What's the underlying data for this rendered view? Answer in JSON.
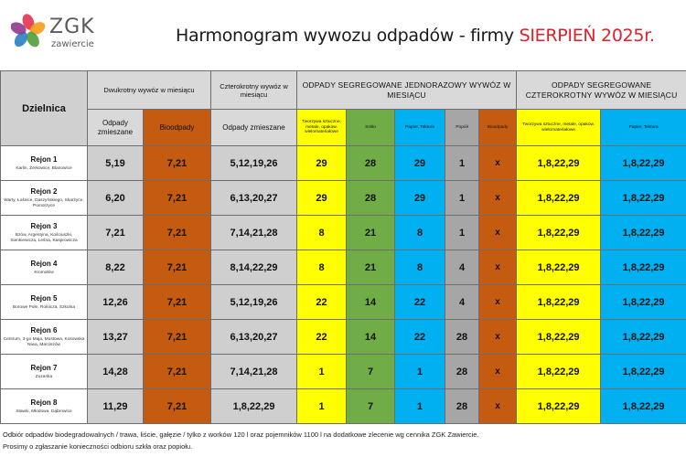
{
  "logo": {
    "word": "ZGK",
    "sub": "zawiercie",
    "colors": [
      "#e2344b",
      "#f49d1a",
      "#4f9d3a",
      "#2a80c5",
      "#8e3a8e"
    ]
  },
  "title": {
    "prefix": "Harmonogram wywozu odpadów - firmy ",
    "accent": "SIERPIEŃ 2025r."
  },
  "headers": {
    "dzielnica": "Dzielnica",
    "dwukrotny": "Dwukrotny wywóz w miesiącu",
    "czterokrotny": "Czterokrotny wywóz w miesiącu",
    "seg_jednorazowy": "ODPADY SEGREGOWANE JEDNORAZOWY WYWÓZ W MIESIĄCU",
    "seg_czterokrotny": "ODPADY SEGREGOWANE CZTEROKROTNY WYWÓZ W MIESIĄCU",
    "odpady_zmieszane": "Odpady zmieszane",
    "bioodpady": "Bioodpady",
    "odpady_zmieszane_4": "Odpady zmieszane",
    "tworzywa": "Tworzywa sztuczne, metale, opakow. wielomateriałowe",
    "szklo": "Szkło",
    "papier": "Papier, Tektura",
    "popiol": "Popiół",
    "bioodpady_seg": "Bioodpady",
    "tworzywa_4": "Tworzywa sztuczne, metale, opakow. wielomateriałowe",
    "papier_4": "Papier, Tektura"
  },
  "rows": [
    {
      "rejon": "Rejon 1",
      "areas": "Karlin, Żerkowice, Blanowice",
      "zm2": "5,19",
      "bio": "7,21",
      "zm4": "5,12,19,26",
      "tw": "29",
      "sz": "28",
      "pa": "29",
      "po": "1",
      "bs": "x",
      "tw4": "1,8,22,29",
      "pa4": "1,8,22,29"
    },
    {
      "rejon": "Rejon 2",
      "areas": "Warty, Łośnice, Daszyńskiego, Skarżyce, Pomorzyce",
      "zm2": "6,20",
      "bio": "7,21",
      "zm4": "6,13,20,27",
      "tw": "29",
      "sz": "28",
      "pa": "29",
      "po": "1",
      "bs": "x",
      "tw4": "1,8,22,29",
      "pa4": "1,8,22,29"
    },
    {
      "rejon": "Rejon 3",
      "areas": "Bzów, Argentyna, Kościuszki, Sienkiewicza, Leśna, Kasprowicza",
      "zm2": "7,21",
      "bio": "7,21",
      "zm4": "7,14,21,28",
      "tw": "8",
      "sz": "21",
      "pa": "8",
      "po": "1",
      "bs": "x",
      "tw4": "1,8,22,29",
      "pa4": "1,8,22,29"
    },
    {
      "rejon": "Rejon 4",
      "areas": "Kromołów",
      "zm2": "8,22",
      "bio": "7,21",
      "zm4": "8,14,22,29",
      "tw": "8",
      "sz": "21",
      "pa": "8",
      "po": "4",
      "bs": "x",
      "tw4": "1,8,22,29",
      "pa4": "1,8,22,29"
    },
    {
      "rejon": "Rejon 5",
      "areas": "Borowe Pole, Rolnicza, Szkolna",
      "zm2": "12,26",
      "bio": "7,21",
      "zm4": "5,12,19,26",
      "tw": "22",
      "sz": "14",
      "pa": "22",
      "po": "4",
      "bs": "x",
      "tw4": "1,8,22,29",
      "pa4": "1,8,22,29"
    },
    {
      "rejon": "Rejon 6",
      "areas": "Centrum, 3-go Maja, Mostowa, Kosowska Niwa, Marciszów",
      "zm2": "13,27",
      "bio": "7,21",
      "zm4": "6,13,20,27",
      "tw": "22",
      "sz": "14",
      "pa": "22",
      "po": "28",
      "bs": "x",
      "tw4": "1,8,22,29",
      "pa4": "1,8,22,29"
    },
    {
      "rejon": "Rejon 7",
      "areas": "Zuzanka",
      "zm2": "14,28",
      "bio": "7,21",
      "zm4": "7,14,21,28",
      "tw": "1",
      "sz": "7",
      "pa": "1",
      "po": "28",
      "bs": "x",
      "tw4": "1,8,22,29",
      "pa4": "1,8,22,29"
    },
    {
      "rejon": "Rejon 8",
      "areas": "Stawki, Młodowa, Dąbrowice",
      "zm2": "11,29",
      "bio": "7,21",
      "zm4": "1,8,22,29",
      "tw": "1",
      "sz": "7",
      "pa": "1",
      "po": "28",
      "bs": "x",
      "tw4": "1,8,22,29",
      "pa4": "1,8,22,29"
    }
  ],
  "footer": {
    "line1": "Odbiór odpadów biodegradowalnych / trawa, liście, gałęzie / tylko z worków 120 l oraz pojemników 1100 l na dodatkowe zlecenie wg cennika ZGK Zawiercie.",
    "line2": "Prosimy o zgłaszanie konieczności odbioru szkła oraz popiołu."
  }
}
